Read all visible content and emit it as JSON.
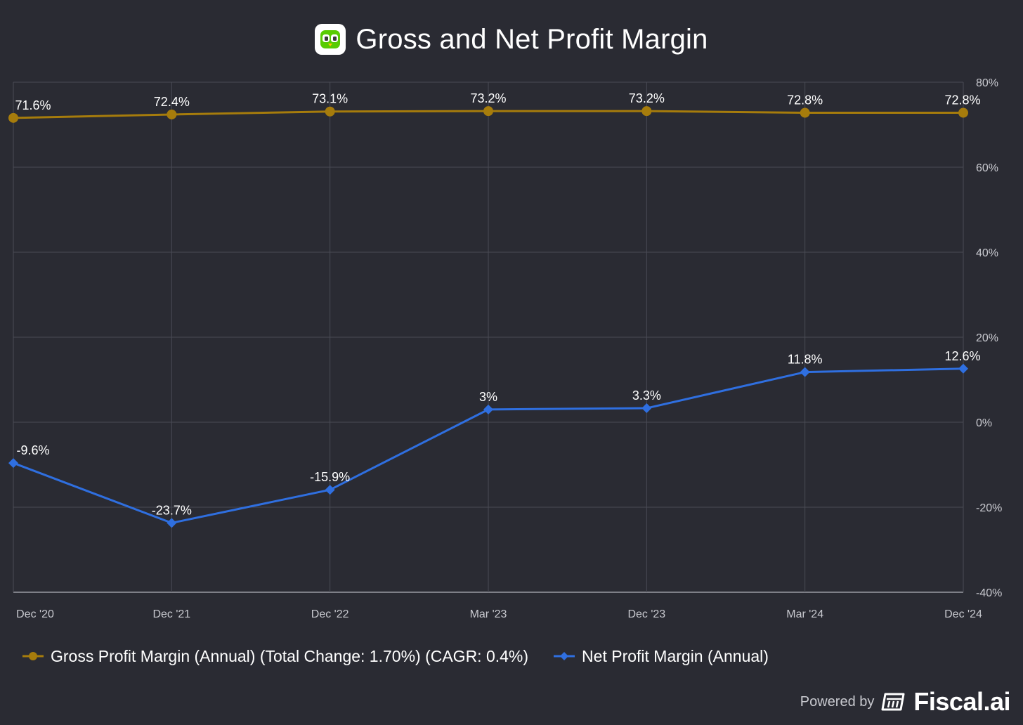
{
  "title": "Gross and Net Profit Margin",
  "logo": {
    "icon": "duolingo-owl-icon",
    "color": "#58cc02"
  },
  "footer": {
    "powered_by": "Powered by",
    "brand": "Fiscal.ai",
    "icon": "fiscal-logo-icon"
  },
  "colors": {
    "background": "#2a2b33",
    "grid": "#4a4b55",
    "axis": "#c9cad0",
    "gross": "#a67c0c",
    "net": "#2f6fe0"
  },
  "chart_data": {
    "type": "line",
    "categories": [
      "Dec '20",
      "Dec '21",
      "Dec '22",
      "Mar '23",
      "Dec '23",
      "Mar '24",
      "Dec '24"
    ],
    "series": [
      {
        "name": "Gross Profit Margin (Annual) (Total Change: 1.70%) (CAGR: 0.4%)",
        "marker": "circle",
        "values": [
          71.6,
          72.4,
          73.1,
          73.2,
          73.2,
          72.8,
          72.8
        ],
        "labels": [
          "71.6%",
          "72.4%",
          "73.1%",
          "73.2%",
          "73.2%",
          "72.8%",
          "72.8%"
        ]
      },
      {
        "name": "Net Profit Margin (Annual)",
        "marker": "diamond",
        "values": [
          -9.6,
          -23.7,
          -15.9,
          3.0,
          3.3,
          11.8,
          12.6
        ],
        "labels": [
          "-9.6%",
          "-23.7%",
          "-15.9%",
          "3%",
          "3.3%",
          "11.8%",
          "12.6%"
        ]
      }
    ],
    "y_axis": {
      "position": "right",
      "range": [
        -40,
        80
      ],
      "ticks": [
        80,
        60,
        40,
        20,
        0,
        -20,
        -40
      ],
      "tick_labels": [
        "80%",
        "60%",
        "40%",
        "20%",
        "0%",
        "-20%",
        "-40%"
      ]
    },
    "grid": true,
    "legend": "bottom-left"
  }
}
